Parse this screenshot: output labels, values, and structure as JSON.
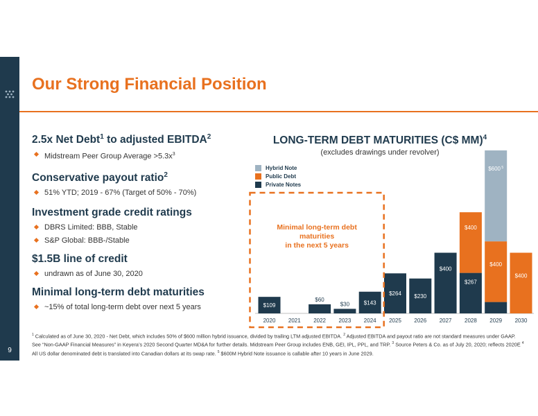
{
  "slide": {
    "title": "Our Strong Financial Position",
    "page_number": "9"
  },
  "sections": [
    {
      "heading": "2.5x Net Debt",
      "heading_sup": "1",
      "heading_tail": " to adjusted EBITDA",
      "heading_tail_sup": "2",
      "bullets": [
        {
          "text": "Midstream Peer Group Average >5.3x",
          "sup": "3"
        }
      ]
    },
    {
      "heading": "Conservative payout ratio",
      "heading_sup": "2",
      "heading_tail": "",
      "heading_tail_sup": "",
      "bullets": [
        {
          "text": "51% YTD; 2019 - 67% (Target of 50% - 70%)",
          "sup": ""
        }
      ]
    },
    {
      "heading": "Investment grade credit ratings",
      "heading_sup": "",
      "heading_tail": "",
      "heading_tail_sup": "",
      "bullets": [
        {
          "text": "DBRS Limited: BBB, Stable",
          "sup": ""
        },
        {
          "text": "S&P Global: BBB-/Stable",
          "sup": ""
        }
      ]
    },
    {
      "heading": "$1.5B line of credit",
      "heading_sup": "",
      "heading_tail": "",
      "heading_tail_sup": "",
      "bullets": [
        {
          "text": "undrawn as of June 30, 2020",
          "sup": ""
        }
      ]
    },
    {
      "heading": "Minimal long-term debt maturities",
      "heading_sup": "",
      "heading_tail": "",
      "heading_tail_sup": "",
      "bullets": [
        {
          "text": "~15% of total long-term debt over next 5 years",
          "sup": ""
        }
      ]
    }
  ],
  "chart_data": {
    "type": "bar",
    "stacked": true,
    "title": "LONG-TERM DEBT MATURITIES (C$ MM)",
    "title_sup": "4",
    "subtitle": "(excludes drawings under revolver)",
    "categories": [
      "2020",
      "2021",
      "2022",
      "2023",
      "2024",
      "2025",
      "2026",
      "2027",
      "2028",
      "2029",
      "2030"
    ],
    "series": [
      {
        "name": "Private Notes",
        "color": "#1f3a4d",
        "values": [
          109,
          0,
          60,
          30,
          143,
          264,
          230,
          400,
          267,
          75,
          0
        ],
        "labels": [
          "$109",
          "",
          "$60",
          "$30",
          "$143",
          "$264",
          "$230",
          "$400",
          "$267",
          "$75",
          ""
        ]
      },
      {
        "name": "Public Debt",
        "color": "#e8711f",
        "values": [
          0,
          0,
          0,
          0,
          0,
          0,
          0,
          0,
          400,
          400,
          400
        ],
        "labels": [
          "",
          "",
          "",
          "",
          "",
          "",
          "",
          "",
          "$400",
          "$400",
          "$400"
        ]
      },
      {
        "name": "Hybrid Note",
        "color": "#9fb3c2",
        "values": [
          0,
          0,
          0,
          0,
          0,
          0,
          0,
          0,
          0,
          600,
          0
        ],
        "labels": [
          "",
          "",
          "",
          "",
          "",
          "",
          "",
          "",
          "",
          "$600",
          ""
        ],
        "label_sups": [
          "",
          "",
          "",
          "",
          "",
          "",
          "",
          "",
          "",
          "5",
          ""
        ]
      }
    ],
    "legend_order": [
      "Hybrid Note",
      "Public Debt",
      "Private Notes"
    ],
    "legend_position": "top-left",
    "annotation": {
      "lines": [
        "Minimal long-term debt",
        "maturities",
        "in the next 5 years"
      ],
      "color": "#e8711f",
      "spans": [
        "2020",
        "2024"
      ]
    }
  },
  "footnote": {
    "parts": [
      {
        "sup": "1",
        "text": " Calculated as of June 30, 2020 - Net Debt, which includes 50% of $600 million hybrid issuance, divided by trailing LTM adjusted EBITDA. "
      },
      {
        "sup": "2",
        "text": " Adjusted EBITDA and payout ratio are not standard measures under GAAP. See “Non-GAAP Financial Measures” in Keyera’s 2020 Second Quarter MD&A for further details. Midstream Peer Group includes ENB, GEI, IPL, PPL, and TRP. "
      },
      {
        "sup": "3",
        "text": " Source Peters & Co. as of July 20, 2020; reflects 2020E "
      },
      {
        "sup": "4",
        "text": " All US dollar denominated debt is translated into Canadian dollars at its swap rate. "
      },
      {
        "sup": "5",
        "text": " $600M Hybrid Note issuance is callable after 10 years in June 2029."
      }
    ]
  }
}
